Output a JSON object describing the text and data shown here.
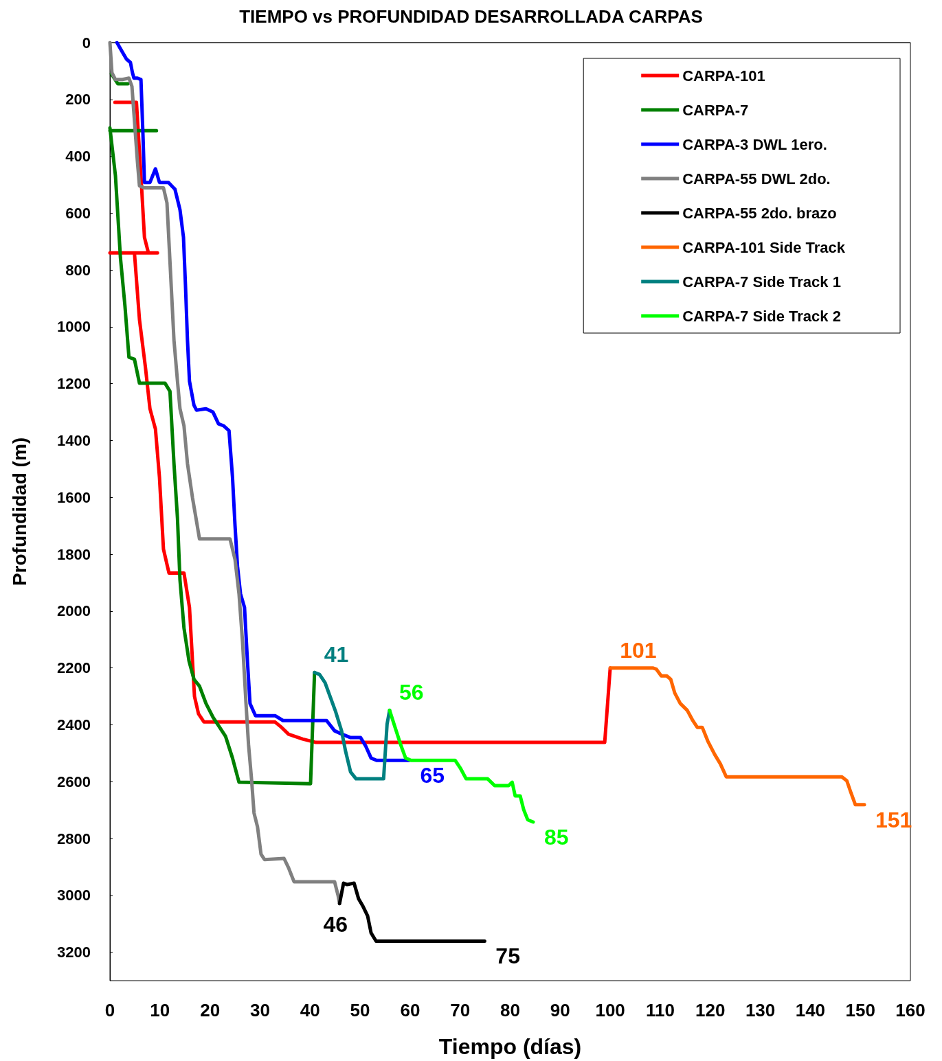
{
  "chart_data": {
    "type": "line",
    "title": "TIEMPO vs PROFUNDIDAD DESARROLLADA CARPAS",
    "xlabel": "Tiempo (días)",
    "ylabel": "Profundidad (m)",
    "xlim": [
      0,
      160
    ],
    "xticks": [
      0,
      10,
      20,
      30,
      40,
      50,
      60,
      70,
      80,
      90,
      100,
      110,
      120,
      130,
      140,
      150,
      160
    ],
    "ylim": [
      3300,
      0
    ],
    "yticks": [
      0,
      200,
      400,
      600,
      800,
      1000,
      1200,
      1400,
      1600,
      1800,
      2000,
      2200,
      2400,
      2600,
      2800,
      3000,
      3200
    ],
    "annotations": [
      {
        "text": "41",
        "x": 40.9,
        "y": 2216
      },
      {
        "text": "56",
        "x": 55.9,
        "y": 2349
      },
      {
        "text": "65",
        "x": 59.8,
        "y": 2525
      },
      {
        "text": "85",
        "x": 84.6,
        "y": 2742
      },
      {
        "text": "101",
        "x": 100,
        "y": 2200
      },
      {
        "text": "151",
        "x": 150.8,
        "y": 2681
      },
      {
        "text": "46",
        "x": 45.9,
        "y": 3029
      },
      {
        "text": "75",
        "x": 74.9,
        "y": 3161
      }
    ],
    "grid": false,
    "legend": "top right",
    "marker": "none",
    "line_style": "solid",
    "series": [
      {
        "name": "CARPA-101",
        "color": "#ff0000",
        "x": [
          1,
          5.3,
          6.3,
          6.9,
          7.7,
          null,
          0,
          9.5,
          null,
          4.9,
          5.9,
          7.1,
          8.0,
          9.1,
          9.9,
          10.7,
          11.8,
          14.8,
          15.9,
          16.9,
          17.7,
          18.8,
          33,
          34.3,
          35.7,
          38.5,
          41.2,
          98.9,
          100
        ],
        "values": [
          210,
          210,
          500,
          685,
          740,
          null,
          740,
          740,
          null,
          740,
          974,
          1143,
          1288,
          1360,
          1529,
          1782,
          1866,
          1866,
          1987,
          2300,
          2361,
          2390,
          2390,
          2409,
          2433,
          2450,
          2462,
          2462,
          2200
        ]
      },
      {
        "name": "CARPA-7",
        "color": "#008000",
        "x": [
          0.3,
          1.6,
          3.6,
          null,
          0,
          9.3,
          null,
          0,
          1.1,
          2.1,
          3.0,
          3.8,
          4.9,
          5.9,
          11,
          12,
          12.8,
          13.5,
          14,
          14.8,
          15.8,
          16.8,
          17.9,
          19.2,
          20.6,
          23.1,
          24.5,
          25.8,
          40.1,
          40.9
        ],
        "values": [
          110,
          145,
          145,
          null,
          310,
          310,
          null,
          300,
          468,
          757,
          926,
          1107,
          1114,
          1198,
          1198,
          1227,
          1481,
          1673,
          1890,
          2059,
          2175,
          2240,
          2264,
          2325,
          2373,
          2440,
          2517,
          2602,
          2607,
          2216
        ]
      },
      {
        "name": "CARPA-3 DWL 1ero.",
        "color": "#0000ff",
        "x": [
          1.4,
          2.5,
          3.3,
          4.1,
          4.5,
          4.8,
          5.5,
          6.2,
          6.6,
          6.9,
          8,
          9.1,
          9.9,
          11.7,
          13,
          14,
          14.7,
          15.1,
          15.5,
          15.9,
          16.8,
          17.3,
          19.2,
          20.6,
          21.7,
          22.7,
          23.8,
          24.5,
          25,
          25.5,
          26.1,
          26.9,
          27.5,
          28,
          29.1,
          33,
          34.6,
          43.3,
          44.9,
          46.4,
          48.1,
          50.1,
          51.1,
          52.2,
          53.3,
          59.8
        ],
        "values": [
          0,
          34,
          58,
          70,
          106,
          125,
          125,
          130,
          323,
          492,
          492,
          444,
          492,
          492,
          516,
          588,
          685,
          854,
          1047,
          1191,
          1276,
          1293,
          1288,
          1300,
          1341,
          1348,
          1365,
          1529,
          1698,
          1842,
          1939,
          1987,
          2180,
          2325,
          2368,
          2368,
          2385,
          2385,
          2421,
          2433,
          2445,
          2445,
          2474,
          2517,
          2525,
          2525
        ]
      },
      {
        "name": "CARPA-55 DWL 2do.",
        "color": "#808080",
        "x": [
          0,
          0.4,
          1.1,
          2.5,
          3.8,
          4.4,
          4.9,
          5.5,
          5.9,
          6.9,
          10.7,
          11.4,
          12.1,
          12.8,
          13.5,
          14,
          14.8,
          15.5,
          16.5,
          17.2,
          17.9,
          24,
          25,
          25.8,
          26.5,
          27.2,
          27.7,
          28.3,
          28.8,
          29.5,
          30.2,
          30.9,
          34.8,
          35.7,
          36.8,
          44.9,
          45.6,
          45.9
        ],
        "values": [
          0,
          106,
          130,
          130,
          125,
          154,
          275,
          420,
          504,
          511,
          511,
          564,
          805,
          1047,
          1191,
          1288,
          1348,
          1481,
          1601,
          1673,
          1746,
          1746,
          1818,
          1939,
          2107,
          2325,
          2469,
          2590,
          2710,
          2759,
          2855,
          2874,
          2870,
          2903,
          2952,
          2952,
          3000,
          3029
        ]
      },
      {
        "name": "CARPA-55 2do. brazo",
        "color": "#000000",
        "x": [
          45.9,
          46.7,
          47.4,
          48.8,
          49.7,
          50.5,
          51.5,
          52.2,
          53.2,
          74.9
        ],
        "values": [
          3029,
          2957,
          2962,
          2957,
          3012,
          3036,
          3072,
          3132,
          3161,
          3161
        ]
      },
      {
        "name": "CARPA-101 Side Track",
        "color": "#ff6600",
        "x": [
          100,
          108.5,
          109.2,
          110.2,
          111.3,
          112.1,
          112.9,
          114,
          115.4,
          116.5,
          117.4,
          118.4,
          119.5,
          120.9,
          122,
          123.2,
          146.3,
          147.3,
          148.1,
          149,
          150.8
        ],
        "values": [
          2200,
          2200,
          2204,
          2228,
          2228,
          2240,
          2288,
          2325,
          2349,
          2385,
          2409,
          2409,
          2457,
          2505,
          2537,
          2583,
          2583,
          2597,
          2638,
          2681,
          2681
        ]
      },
      {
        "name": "CARPA-7 Side Track 1",
        "color": "#008080",
        "x": [
          40.9,
          41.9,
          43,
          44,
          45.1,
          46.3,
          47.1,
          48.1,
          49.2,
          54.7,
          55.4,
          55.9
        ],
        "values": [
          2216,
          2223,
          2252,
          2300,
          2353,
          2421,
          2493,
          2566,
          2590,
          2590,
          2397,
          2349
        ]
      },
      {
        "name": "CARPA-7 Side Track 2",
        "color": "#00ff00",
        "x": [
          55.9,
          57,
          58.1,
          59.1,
          60.2,
          69,
          70.1,
          71.2,
          75.5,
          76.9,
          79.7,
          80.4,
          81,
          82,
          82.7,
          83.5,
          84.6
        ],
        "values": [
          2349,
          2409,
          2469,
          2517,
          2525,
          2525,
          2554,
          2590,
          2590,
          2614,
          2614,
          2602,
          2650,
          2650,
          2698,
          2734,
          2742
        ]
      }
    ]
  }
}
